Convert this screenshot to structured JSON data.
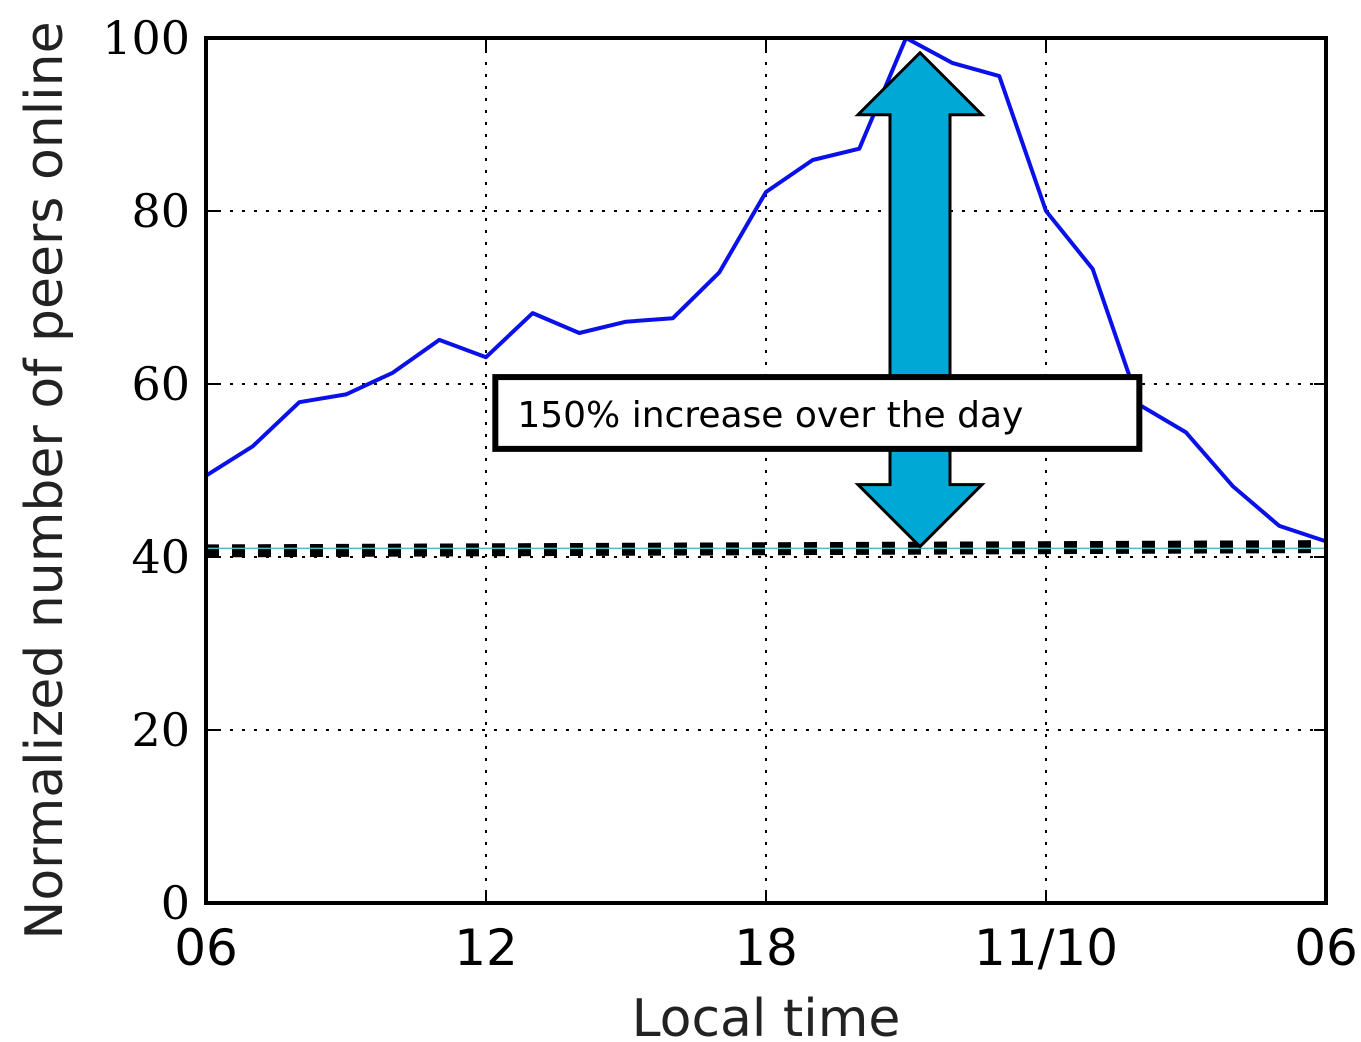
{
  "chart_data": {
    "type": "line",
    "title": "",
    "xlabel": "Local time",
    "ylabel": "Normalized number of peers online",
    "xlim": [
      0,
      24
    ],
    "ylim": [
      0,
      100
    ],
    "x_ticks": [
      {
        "x": 0,
        "label": "06"
      },
      {
        "x": 6,
        "label": "12"
      },
      {
        "x": 12,
        "label": "18"
      },
      {
        "x": 18,
        "label": "11/10"
      },
      {
        "x": 24,
        "label": "06"
      }
    ],
    "y_ticks": [
      0,
      20,
      40,
      60,
      80,
      100
    ],
    "grid": "dotted",
    "series": [
      {
        "name": "",
        "style": "solid",
        "color": "#0a10e8",
        "x": [
          0,
          1,
          2,
          3,
          4,
          5,
          6,
          7,
          8,
          9,
          10,
          11,
          12,
          13,
          14,
          15,
          16,
          17,
          18,
          19,
          20,
          21,
          22,
          23,
          24
        ],
        "values": [
          49.4,
          52.8,
          57.9,
          58.8,
          61.3,
          65.1,
          63.1,
          68.2,
          65.9,
          67.2,
          67.6,
          72.9,
          82.2,
          85.9,
          87.2,
          100,
          97.1,
          95.6,
          80.0,
          73.3,
          57.6,
          54.4,
          48.2,
          43.6,
          41.8
        ]
      },
      {
        "name": "",
        "style": "dotted-thick",
        "color": "#000000",
        "x": [
          0,
          24
        ],
        "values": [
          40.7,
          41.2
        ]
      },
      {
        "name": "",
        "style": "thin",
        "color": "#58b4c8",
        "x": [
          0,
          24
        ],
        "values": [
          41.0,
          41.0
        ]
      }
    ],
    "annotations": [
      {
        "type": "double-arrow",
        "x": 15.3,
        "y_from": 41.2,
        "y_to": 98.3,
        "color": "#00a8d6"
      },
      {
        "type": "text-box",
        "text": "150% increase over the day",
        "x_from": 6.2,
        "x_to": 20.0,
        "y_from": 52.5,
        "y_to": 60.8
      }
    ]
  }
}
